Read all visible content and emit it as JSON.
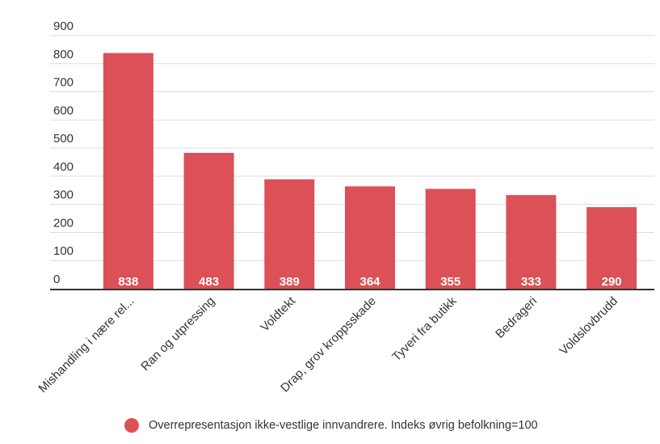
{
  "colors": {
    "bar": "#db5157",
    "grid": "#dddddd",
    "axis": "#333333",
    "text": "#333333",
    "data_label": "#ffffff"
  },
  "chart_data": {
    "type": "bar",
    "title": "",
    "xlabel": "",
    "ylabel": "",
    "categories": [
      "Mishandling i nære rel...",
      "Ran og utpressing",
      "Voldtekt",
      "Drap, grov kroppsskade",
      "Tyveri fra butikk",
      "Bedrageri",
      "Voldslovbrudd"
    ],
    "series": [
      {
        "name": "Overrepresentasjon ikke-vestlige innvandrere. Indeks øvrig befolkning=100",
        "values": [
          838,
          483,
          389,
          364,
          355,
          333,
          290
        ]
      }
    ],
    "ylim": [
      0,
      900
    ],
    "yticks": [
      0,
      100,
      200,
      300,
      400,
      500,
      600,
      700,
      800,
      900
    ],
    "grid": true,
    "data_labels": true,
    "legend_position": "bottom"
  }
}
